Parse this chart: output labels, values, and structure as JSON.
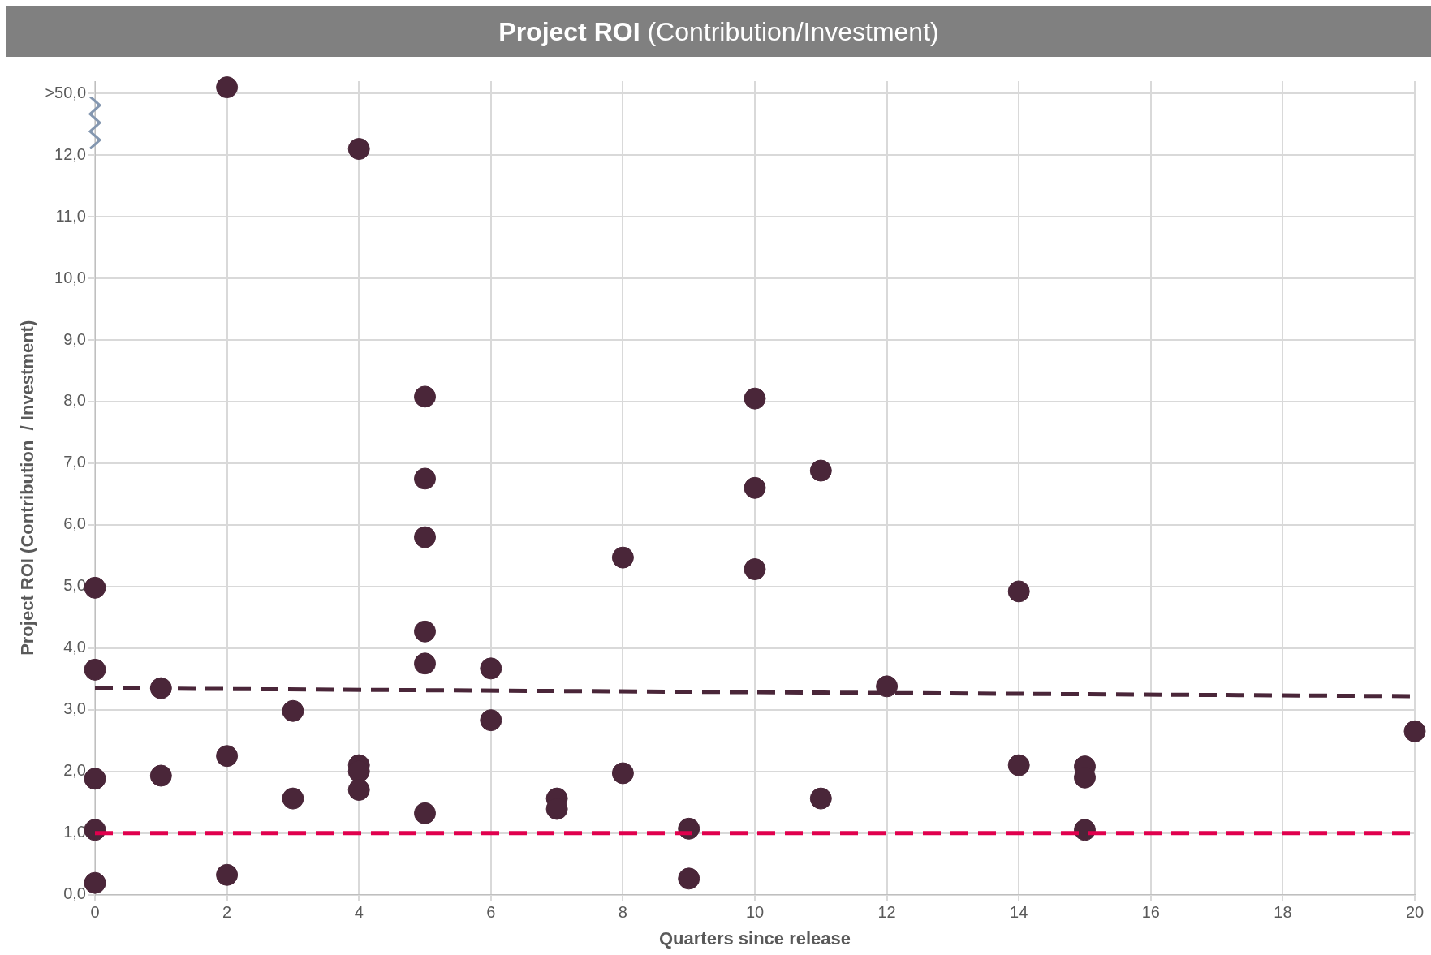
{
  "chart_data": {
    "type": "scatter",
    "title": "Project ROI (Contribution/Investment)",
    "xlabel": "Quarters since release",
    "ylabel": "Project ROI (Contribution  / Investment)",
    "xlim": [
      0,
      20
    ],
    "xticks": [
      0,
      2,
      4,
      6,
      8,
      10,
      12,
      14,
      16,
      18,
      20
    ],
    "ylim": [
      0,
      13.2
    ],
    "yticks": [
      {
        "value": 0,
        "label": "0,0"
      },
      {
        "value": 1,
        "label": "1,0"
      },
      {
        "value": 2,
        "label": "2,0"
      },
      {
        "value": 3,
        "label": "3,0"
      },
      {
        "value": 4,
        "label": "4,0"
      },
      {
        "value": 5,
        "label": "5,0"
      },
      {
        "value": 6,
        "label": "6,0"
      },
      {
        "value": 7,
        "label": "7,0"
      },
      {
        "value": 8,
        "label": "8,0"
      },
      {
        "value": 9,
        "label": "9,0"
      },
      {
        "value": 10,
        "label": "10,0"
      },
      {
        "value": 11,
        "label": "11,0"
      },
      {
        "value": 12,
        "label": "12,0"
      },
      {
        "value": 13,
        "label": ">50,0"
      }
    ],
    "grid": true,
    "legend": false,
    "series": [
      {
        "marker": "circle",
        "color": "#4a2639",
        "x": [
          0,
          0,
          0,
          0,
          0,
          1,
          1,
          2,
          2,
          2,
          3,
          3,
          4,
          4,
          4,
          4,
          5,
          5,
          5,
          5,
          5,
          5,
          6,
          6,
          7,
          7,
          8,
          8,
          9,
          9,
          10,
          10,
          10,
          11,
          11,
          12,
          14,
          14,
          15,
          15,
          15,
          20
        ],
        "values": [
          4.98,
          3.65,
          1.88,
          1.05,
          0.19,
          3.35,
          1.93,
          13.1,
          2.25,
          0.32,
          2.98,
          1.56,
          12.1,
          2.1,
          2.0,
          1.7,
          8.08,
          6.75,
          5.8,
          4.27,
          3.75,
          1.32,
          3.67,
          2.83,
          1.56,
          1.39,
          5.47,
          1.97,
          1.07,
          0.26,
          8.05,
          6.6,
          5.28,
          6.88,
          1.56,
          3.38,
          4.92,
          2.1,
          2.08,
          1.9,
          1.05,
          2.65
        ]
      },
      {
        "type": "line",
        "color": "#4a2639",
        "line_style": "dashed",
        "x": [
          0,
          20
        ],
        "values": [
          3.35,
          3.22
        ]
      }
    ],
    "ref_lines": [
      {
        "axis": "y",
        "value": 1,
        "color": "#e0004d",
        "line_style": "dashed"
      }
    ]
  }
}
